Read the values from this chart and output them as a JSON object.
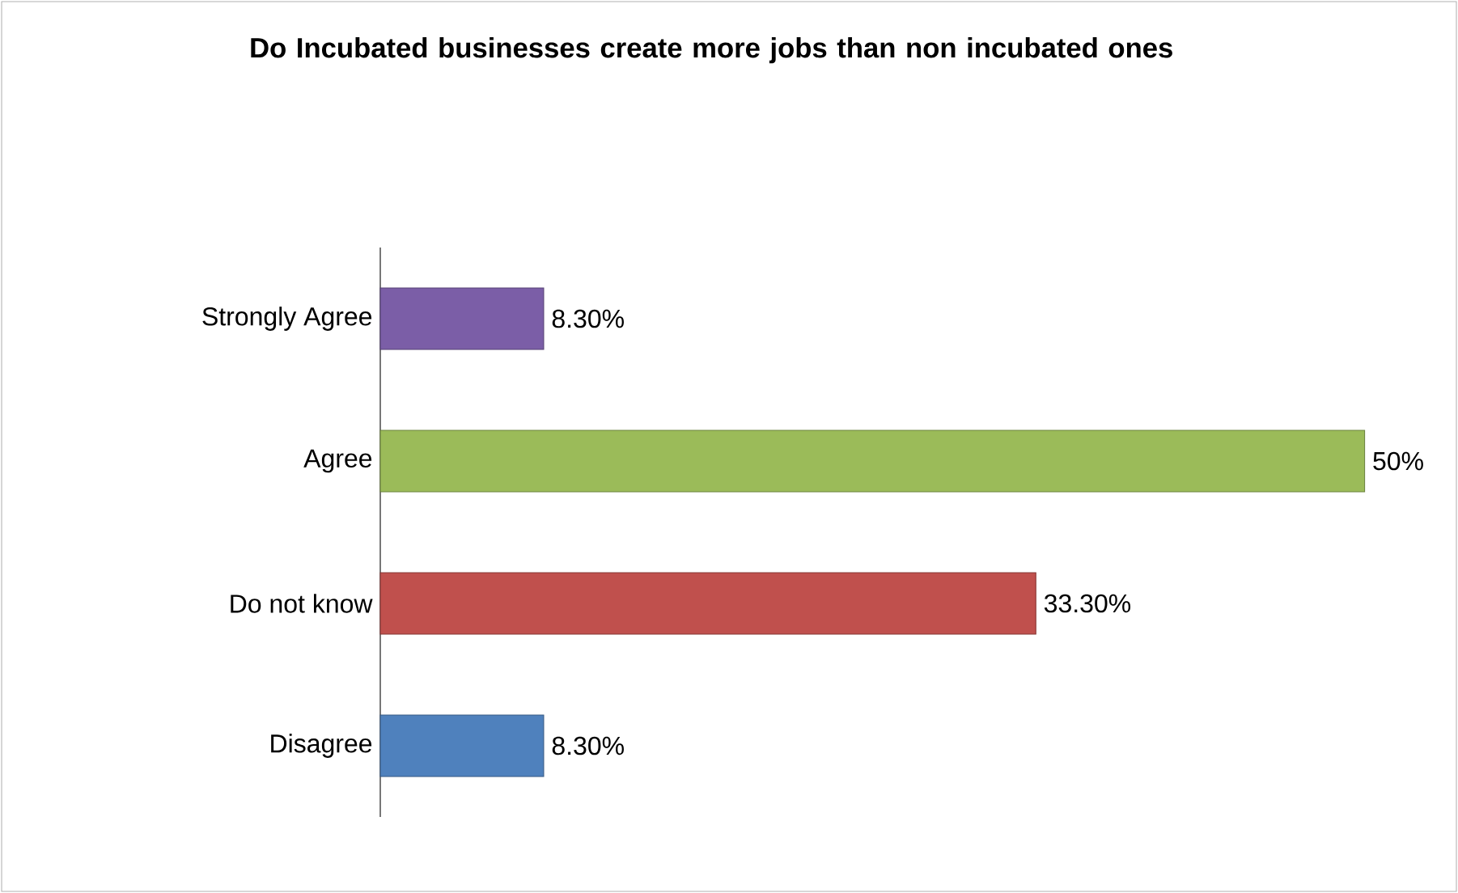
{
  "chart_data": {
    "type": "bar",
    "orientation": "horizontal",
    "title": "Do Incubated businesses create more jobs than non incubated ones",
    "categories": [
      "Strongly Agree",
      "Agree",
      "Do not know",
      "Disagree"
    ],
    "values": [
      8.3,
      50,
      33.3,
      8.3
    ],
    "value_labels": [
      "8.30%",
      "50%",
      "33.30%",
      "8.30%"
    ],
    "colors": [
      "#7b5ea7",
      "#9bbb59",
      "#c0504d",
      "#4f81bd"
    ]
  }
}
